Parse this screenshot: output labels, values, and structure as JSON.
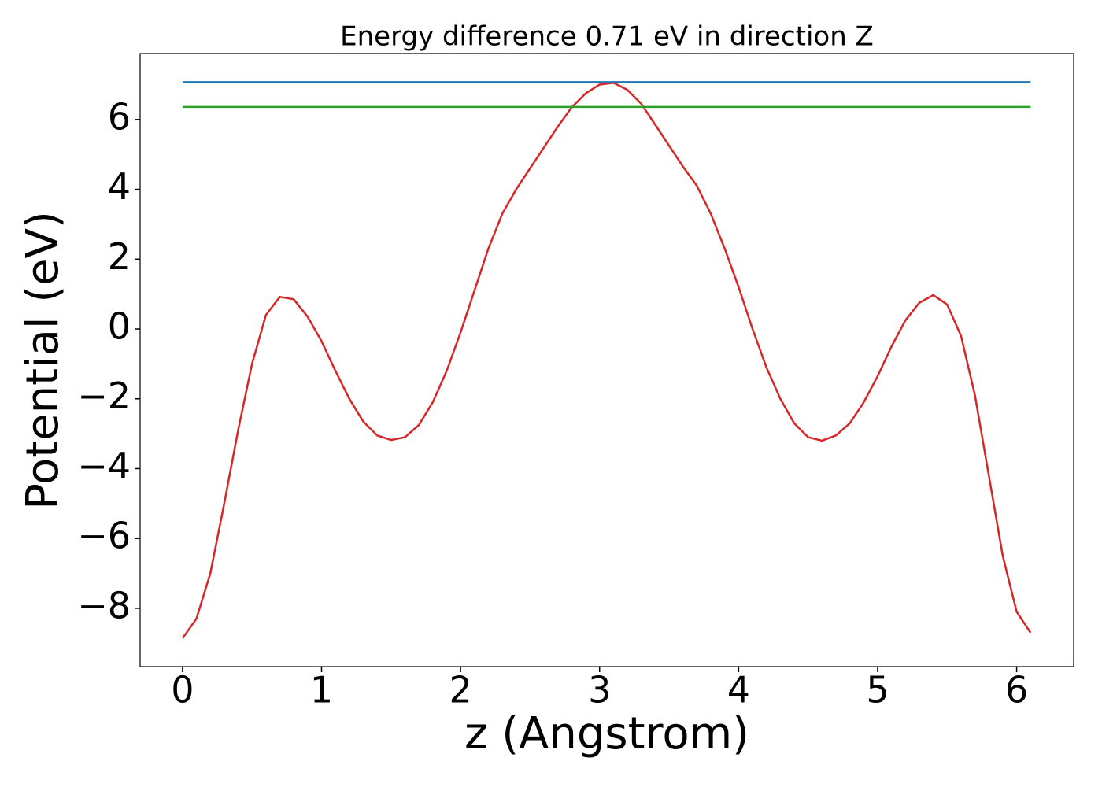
{
  "chart_data": {
    "type": "line",
    "title": "Energy difference 0.71 eV in direction Z",
    "xlabel": "z (Angstrom)",
    "ylabel": "Potential (eV)",
    "x": [
      0,
      0.1,
      0.2,
      0.3,
      0.4,
      0.5,
      0.6,
      0.7,
      0.8,
      0.9,
      1.0,
      1.1,
      1.2,
      1.3,
      1.4,
      1.5,
      1.6,
      1.7,
      1.8,
      1.9,
      2.0,
      2.1,
      2.2,
      2.3,
      2.4,
      2.5,
      2.6,
      2.7,
      2.8,
      2.9,
      3.0,
      3.1,
      3.2,
      3.3,
      3.4,
      3.5,
      3.6,
      3.7,
      3.8,
      3.9,
      4.0,
      4.1,
      4.2,
      4.3,
      4.4,
      4.5,
      4.6,
      4.7,
      4.8,
      4.9,
      5.0,
      5.1,
      5.2,
      5.3,
      5.4,
      5.5,
      5.6,
      5.7,
      5.8,
      5.9,
      6.0,
      6.1
    ],
    "series": [
      {
        "color": "#d62728",
        "values": [
          -8.86,
          -8.3,
          -7.0,
          -5.0,
          -2.9,
          -1.0,
          0.4,
          0.92,
          0.85,
          0.35,
          -0.35,
          -1.2,
          -2.0,
          -2.65,
          -3.05,
          -3.18,
          -3.1,
          -2.75,
          -2.1,
          -1.2,
          -0.1,
          1.1,
          2.3,
          3.3,
          4.0,
          4.6,
          5.2,
          5.8,
          6.35,
          6.75,
          7.0,
          7.05,
          6.85,
          6.45,
          5.85,
          5.25,
          4.65,
          4.1,
          3.3,
          2.3,
          1.2,
          0.0,
          -1.1,
          -2.0,
          -2.7,
          -3.1,
          -3.2,
          -3.05,
          -2.7,
          -2.1,
          -1.35,
          -0.5,
          0.25,
          0.75,
          0.97,
          0.7,
          -0.2,
          -1.9,
          -4.2,
          -6.5,
          -8.1,
          -8.7
        ]
      },
      {
        "color": "#1f77b4",
        "x": [
          0,
          6.1
        ],
        "values": [
          7.07,
          7.07
        ]
      },
      {
        "color": "#2ca02c",
        "x": [
          0,
          6.1
        ],
        "values": [
          6.36,
          6.36
        ]
      }
    ],
    "xlim": [
      -0.305,
      6.41
    ],
    "ylim": [
      -9.67,
      7.89
    ],
    "xticks": [
      0,
      1,
      2,
      3,
      4,
      5,
      6
    ],
    "yticks": [
      {
        "value": -8,
        "label": "−8"
      },
      {
        "value": -6,
        "label": "−6"
      },
      {
        "value": -4,
        "label": "−4"
      },
      {
        "value": -2,
        "label": "−2"
      },
      0,
      2,
      4,
      6
    ],
    "grid": false
  }
}
